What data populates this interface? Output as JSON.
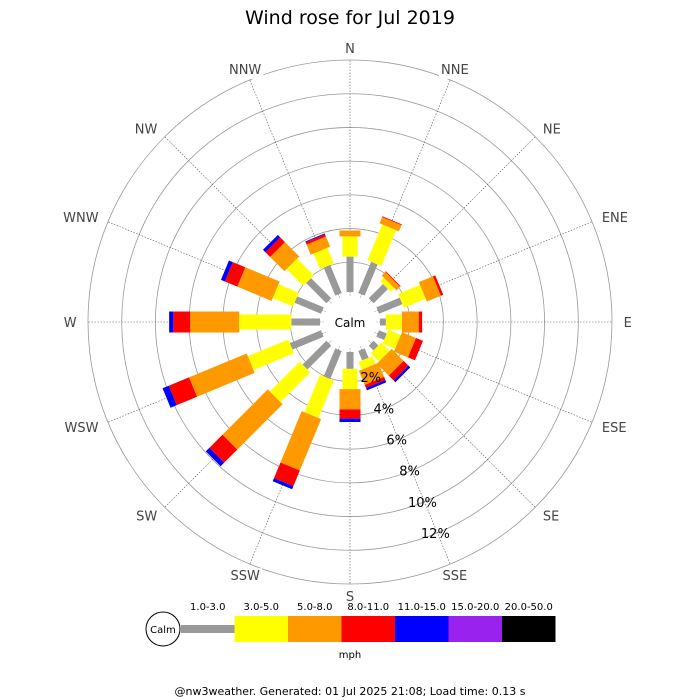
{
  "chart_data": {
    "type": "wind-rose",
    "title": "Wind rose for Jul 2019",
    "calm_label": "Calm",
    "units": "mph",
    "radial_ticks": [
      "2%",
      "4%",
      "6%",
      "8%",
      "10%",
      "12%"
    ],
    "radial_max": 14,
    "directions": [
      "N",
      "NNE",
      "NE",
      "ENE",
      "E",
      "ESE",
      "SE",
      "SSE",
      "S",
      "SSW",
      "SW",
      "WSW",
      "W",
      "WNW",
      "NW",
      "NNW"
    ],
    "speed_bins": [
      {
        "label": "1.0-3.0",
        "color": "#999999"
      },
      {
        "label": "3.0-5.0",
        "color": "#ffff00"
      },
      {
        "label": "5.0-8.0",
        "color": "#ff9900"
      },
      {
        "label": "8.0-11.0",
        "color": "#ff0000"
      },
      {
        "label": "11.0-15.0",
        "color": "#0000ff"
      },
      {
        "label": "15.0-20.0",
        "color": "#9922ee"
      },
      {
        "label": "20.0-50.0",
        "color": "#000000"
      }
    ],
    "series": [
      {
        "direction": "N",
        "values": [
          2.1,
          1.2,
          0.35,
          0.0,
          0.0,
          0.0,
          0.0
        ]
      },
      {
        "direction": "NNE",
        "values": [
          2.0,
          2.3,
          0.4,
          0.05,
          0.0,
          0.0,
          0.0
        ]
      },
      {
        "direction": "NE",
        "values": [
          1.2,
          0.3,
          0.3,
          0.05,
          0.0,
          0.0,
          0.0
        ]
      },
      {
        "direction": "ENE",
        "values": [
          1.5,
          1.4,
          0.9,
          0.15,
          0.0,
          0.0,
          0.0
        ]
      },
      {
        "direction": "E",
        "values": [
          0.35,
          0.95,
          1.0,
          0.2,
          0.0,
          0.0,
          0.0
        ]
      },
      {
        "direction": "ESE",
        "values": [
          0.5,
          0.8,
          0.9,
          0.45,
          0.0,
          0.0,
          0.0
        ]
      },
      {
        "direction": "SE",
        "values": [
          0.4,
          0.7,
          1.0,
          0.4,
          0.15,
          0.0,
          0.0
        ]
      },
      {
        "direction": "SSE",
        "values": [
          0.6,
          0.5,
          0.9,
          0.2,
          0.15,
          0.0,
          0.0
        ]
      },
      {
        "direction": "S",
        "values": [
          1.0,
          1.2,
          1.2,
          0.55,
          0.2,
          0.0,
          0.0
        ]
      },
      {
        "direction": "SSW",
        "values": [
          1.8,
          2.4,
          3.3,
          1.0,
          0.2,
          0.0,
          0.0
        ]
      },
      {
        "direction": "SW",
        "values": [
          2.0,
          2.5,
          3.8,
          1.1,
          0.3,
          0.0,
          0.0
        ]
      },
      {
        "direction": "WSW",
        "values": [
          2.0,
          2.6,
          3.7,
          1.3,
          0.4,
          0.0,
          0.0
        ]
      },
      {
        "direction": "W",
        "values": [
          1.7,
          3.1,
          2.9,
          1.0,
          0.25,
          0.0,
          0.0
        ]
      },
      {
        "direction": "WNW",
        "values": [
          1.7,
          1.3,
          2.2,
          0.8,
          0.25,
          0.0,
          0.0
        ]
      },
      {
        "direction": "NW",
        "values": [
          1.7,
          1.4,
          1.2,
          0.4,
          0.2,
          0.0,
          0.0
        ]
      },
      {
        "direction": "NNW",
        "values": [
          1.8,
          1.0,
          0.65,
          0.15,
          0.05,
          0.0,
          0.0
        ]
      }
    ]
  },
  "footer": "@nw3weather. Generated: 01 Jul 2025 21:08; Load time: 0.13 s"
}
